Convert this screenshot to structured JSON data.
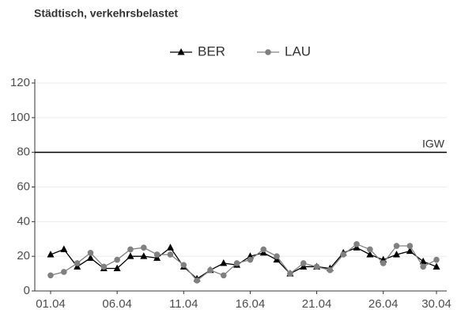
{
  "chart_data": {
    "type": "line",
    "title": "Städtisch, verkehrsbelastet",
    "categories": [
      "01.04",
      null,
      null,
      null,
      null,
      "06.04",
      null,
      null,
      null,
      null,
      "11.04",
      null,
      null,
      null,
      null,
      "16.04",
      null,
      null,
      null,
      null,
      "21.04",
      null,
      null,
      null,
      null,
      "26.04",
      null,
      null,
      null,
      "30.04"
    ],
    "series": [
      {
        "name": "BER",
        "color": "#000000",
        "marker": "triangle",
        "values": [
          21,
          24,
          14,
          19,
          13,
          13,
          20,
          20,
          19,
          25,
          14,
          7,
          12,
          16,
          15,
          20,
          22,
          18,
          10,
          14,
          14,
          13,
          22,
          25,
          21,
          18,
          21,
          23,
          17,
          14
        ]
      },
      {
        "name": "LAU",
        "color": "#808080",
        "marker": "circle",
        "values": [
          9,
          11,
          16,
          22,
          14,
          18,
          24,
          25,
          21,
          21,
          15,
          6,
          12,
          9,
          16,
          18,
          24,
          20,
          10,
          16,
          14,
          12,
          21,
          27,
          24,
          16,
          26,
          26,
          14,
          18
        ]
      }
    ],
    "ylim": [
      0,
      120
    ],
    "yticks": [
      0,
      20,
      40,
      60,
      80,
      100,
      120
    ],
    "grid": true,
    "legend": "top",
    "hlines": [
      {
        "value": 80,
        "label": "IGW"
      }
    ]
  }
}
